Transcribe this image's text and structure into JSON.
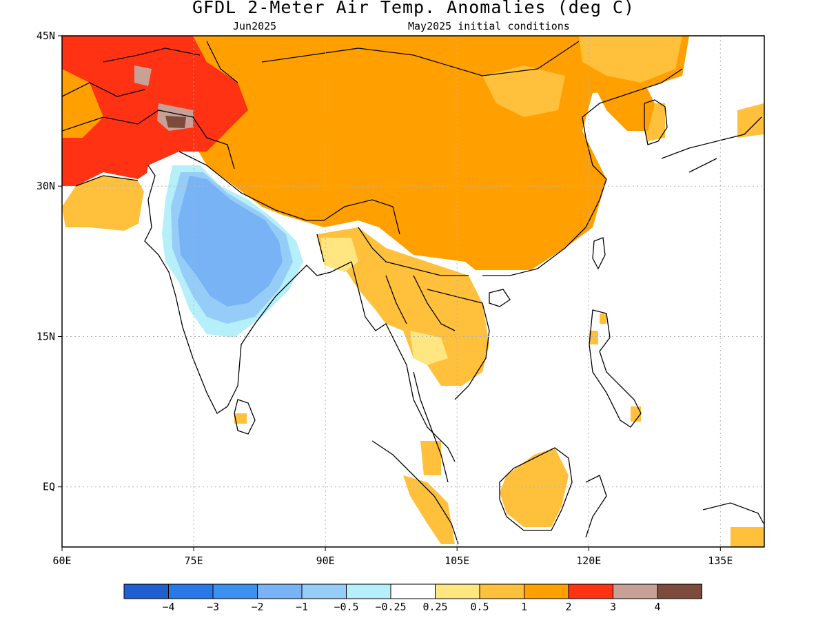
{
  "title": "GFDL 2-Meter Air Temp. Anomalies (deg C)",
  "subtitle_left": "Jun2025",
  "subtitle_right": "May2025 initial conditions",
  "map": {
    "lon_range": [
      60,
      140
    ],
    "lat_range": [
      -6,
      45
    ],
    "lon_ticks": [
      {
        "value": 60,
        "label": "60E"
      },
      {
        "value": 75,
        "label": "75E"
      },
      {
        "value": 90,
        "label": "90E"
      },
      {
        "value": 105,
        "label": "105E"
      },
      {
        "value": 120,
        "label": "120E"
      },
      {
        "value": 135,
        "label": "135E"
      }
    ],
    "lat_ticks": [
      {
        "value": 45,
        "label": "45N"
      },
      {
        "value": 30,
        "label": "30N"
      },
      {
        "value": 15,
        "label": "15N"
      },
      {
        "value": 0,
        "label": "EQ"
      }
    ],
    "grid": true
  },
  "colorbar": {
    "colors": [
      "#1f5fcf",
      "#2878e8",
      "#3c91f0",
      "#78b4f5",
      "#96cdf8",
      "#b4effa",
      "#ffffff",
      "#ffe680",
      "#ffc03c",
      "#ffa000",
      "#ff3214",
      "#c8a096",
      "#7d4b3c"
    ],
    "labels": [
      "−4",
      "−3",
      "−2",
      "−1",
      "−0.5",
      "−0.25",
      "0.25",
      "0.5",
      "1",
      "2",
      "3",
      "4"
    ]
  }
}
